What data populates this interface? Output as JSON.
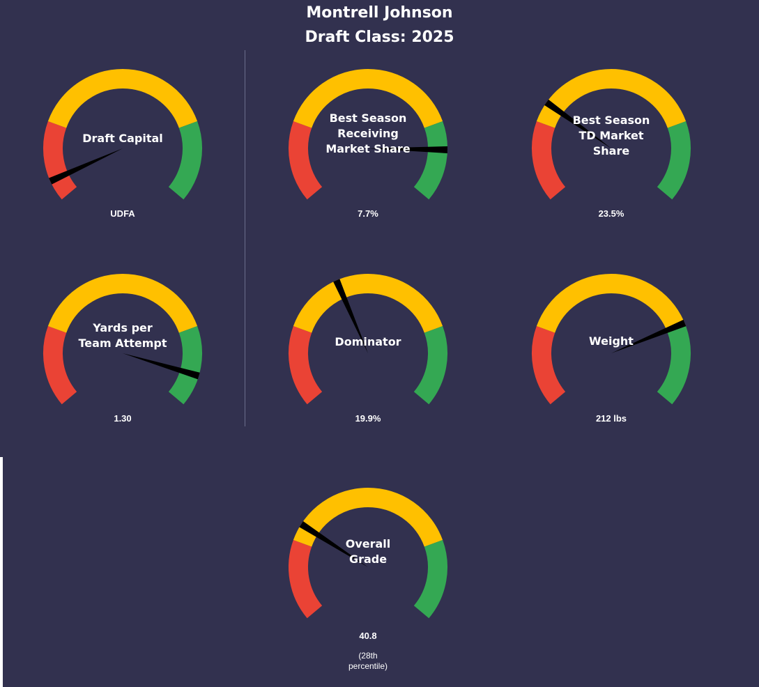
{
  "header": {
    "title_line1": "Montrell Johnson",
    "title_line2": "Draft Class: 2025"
  },
  "colors": {
    "background": "#32314f",
    "red": "#ea4335",
    "yellow": "#ffc000",
    "green": "#34a853",
    "needle": "#000000",
    "text": "#ffffff"
  },
  "chart_data": [
    {
      "type": "gauge",
      "label_lines": [
        "Draft Capital"
      ],
      "display_value": "UDFA",
      "needle_fraction": 0.06,
      "bands": [
        "red",
        "yellow",
        "green"
      ]
    },
    {
      "type": "gauge",
      "label_lines": [
        "Best Season",
        "Receiving",
        "Market Share"
      ],
      "display_value": "7.7%",
      "needle_fraction": 0.85,
      "bands": [
        "red",
        "yellow",
        "green"
      ]
    },
    {
      "type": "gauge",
      "label_lines": [
        "Best Season",
        "TD Market",
        "Share"
      ],
      "display_value": "23.5%",
      "needle_fraction": 0.29,
      "bands": [
        "red",
        "yellow",
        "green"
      ]
    },
    {
      "type": "gauge",
      "label_lines": [
        "Yards per",
        "Team Attempt"
      ],
      "display_value": "1.30",
      "needle_fraction": 0.91,
      "bands": [
        "red",
        "yellow",
        "green"
      ]
    },
    {
      "type": "gauge",
      "label_lines": [
        "Dominator"
      ],
      "display_value": "19.9%",
      "needle_fraction": 0.41,
      "bands": [
        "red",
        "yellow",
        "green"
      ]
    },
    {
      "type": "gauge",
      "label_lines": [
        "Weight"
      ],
      "display_value": "212 lbs",
      "needle_fraction": 0.76,
      "bands": [
        "red",
        "yellow",
        "green"
      ]
    },
    {
      "type": "gauge",
      "label_lines": [
        "Overall",
        "Grade"
      ],
      "display_value": "40.8",
      "note_lines": [
        "(28th",
        "percentile)"
      ],
      "needle_fraction": 0.28,
      "bands": [
        "red",
        "yellow",
        "green"
      ]
    }
  ]
}
